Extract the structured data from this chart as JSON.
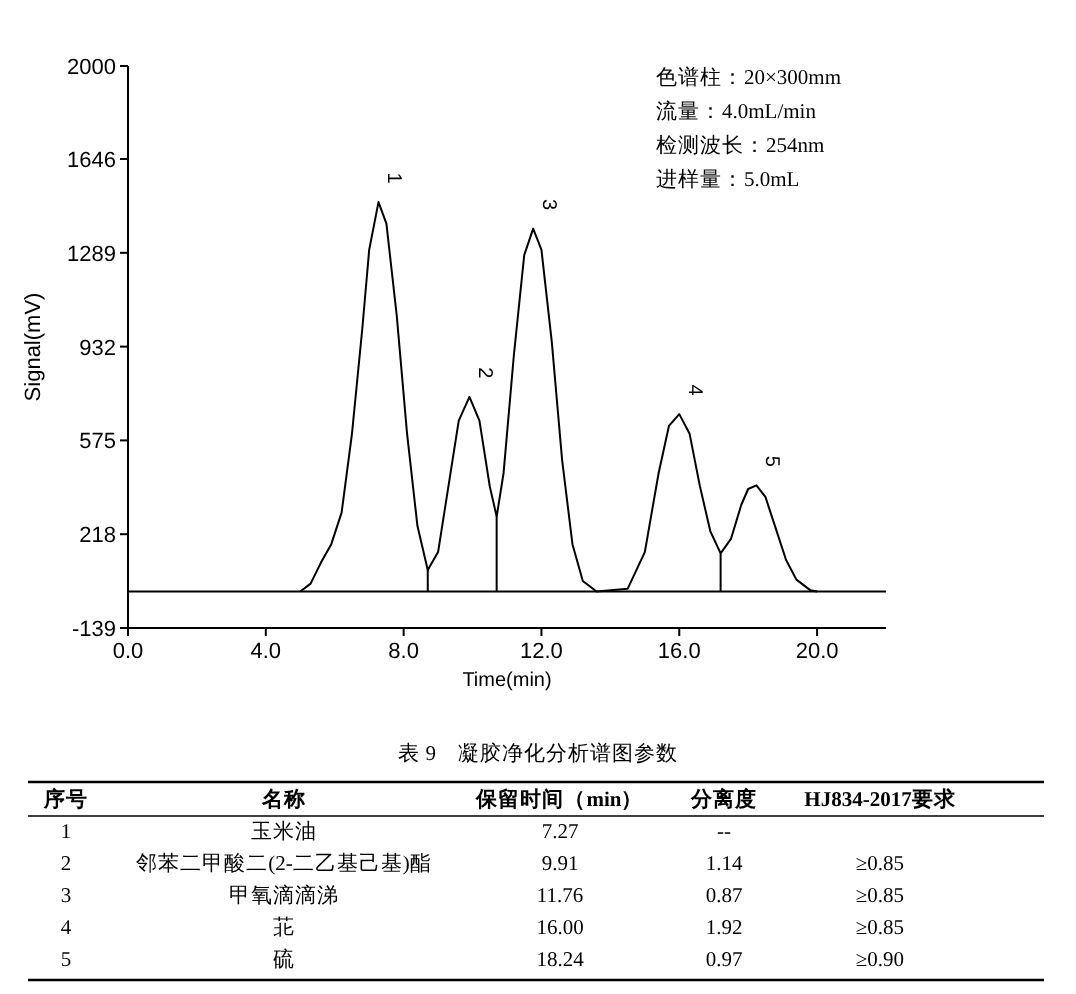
{
  "chart_data": {
    "type": "line",
    "xlabel": "Time(min)",
    "ylabel": "Signal(mV)",
    "xlim": [
      0,
      22
    ],
    "xticks": [
      {
        "value": 0,
        "label": "0.0"
      },
      {
        "value": 4,
        "label": "4.0"
      },
      {
        "value": 8,
        "label": "8.0"
      },
      {
        "value": 12,
        "label": "12.0"
      },
      {
        "value": 16,
        "label": "16.0"
      },
      {
        "value": 20,
        "label": "20.0"
      }
    ],
    "ylim": [
      -139,
      2000
    ],
    "yticks": [
      -139,
      218,
      575,
      932,
      1289,
      1646,
      2000
    ],
    "grid": false,
    "line_style": "solid",
    "marker": "none",
    "ref_lines": [
      {
        "axis": "y",
        "value": 0,
        "color": "#000000"
      }
    ],
    "series": [
      {
        "color": "#000000",
        "x": [
          5.0,
          5.3,
          5.6,
          5.9,
          6.2,
          6.5,
          6.8,
          7.0,
          7.27,
          7.5,
          7.8,
          8.1,
          8.4,
          8.7,
          9.0,
          9.3,
          9.6,
          9.91,
          10.2,
          10.5,
          10.7,
          10.9,
          11.2,
          11.5,
          11.76,
          12.0,
          12.3,
          12.6,
          12.9,
          13.2,
          13.6,
          14.5,
          15.0,
          15.4,
          15.7,
          16.0,
          16.3,
          16.6,
          16.9,
          17.2,
          17.5,
          17.8,
          18.0,
          18.24,
          18.5,
          18.8,
          19.1,
          19.4,
          19.8,
          20.0
        ],
        "values": [
          0,
          30,
          110,
          180,
          300,
          600,
          1000,
          1300,
          1482,
          1400,
          1050,
          600,
          250,
          82,
          150,
          400,
          650,
          741,
          650,
          400,
          285,
          450,
          900,
          1280,
          1381,
          1300,
          950,
          500,
          180,
          40,
          0,
          10,
          150,
          450,
          630,
          675,
          600,
          400,
          230,
          145,
          200,
          330,
          390,
          404,
          360,
          240,
          120,
          45,
          5,
          0
        ]
      },
      {
        "type": "line",
        "color": "#000000",
        "x": [
          8.7,
          8.7,
          null,
          10.7,
          10.7,
          null,
          17.2,
          17.2
        ],
        "values": [
          0,
          82,
          null,
          0,
          285,
          null,
          0,
          145
        ]
      }
    ],
    "annotations": [
      {
        "text": "1",
        "x": 7.27,
        "y": 1482
      },
      {
        "text": "2",
        "x": 9.91,
        "y": 741
      },
      {
        "text": "3",
        "x": 11.76,
        "y": 1381
      },
      {
        "text": "4",
        "x": 16.0,
        "y": 675
      },
      {
        "text": "5",
        "x": 18.24,
        "y": 404
      },
      "色谱柱：20×300mm",
      "流量：4.0mL/min",
      "检测波长：254nm",
      "进样量：5.0mL",
      "表 9　凝胶净化分析谱图参数",
      "序号\t名称\t保留时间（min）\t分离度\tHJ834-2017要求",
      "1\t玉米油\t7.27\t--",
      "2\t邻苯二甲酸二(2-二乙基己基)酯\t9.91\t1.14\t≥0.85",
      "3\t甲氧滴滴涕\t11.76\t0.87\t≥0.85",
      "4\t苝\t16.00\t1.92\t≥0.85",
      "5\t硫\t18.24\t0.97\t≥0.90"
    ]
  }
}
